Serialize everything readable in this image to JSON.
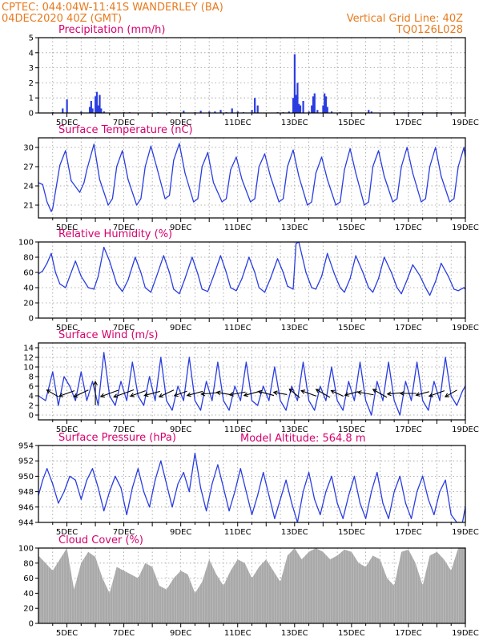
{
  "header": {
    "source_line": "CPTEC:   044:04W-11:41S   WANDERLEY (BA)",
    "run_line": "04DEC2020 40Z (GMT)",
    "grid_note": "Vertical Grid Line: 40Z",
    "code": "TQ0126L028"
  },
  "model_altitude_label": "Model Altitude: 564.8 m",
  "colors": {
    "header": "#e87a1e",
    "title": "#d6006e",
    "series": "#2a3de0",
    "cloud": "#a9a9a9",
    "wind_arrow": "#000000"
  },
  "chart_data": [
    {
      "type": "bar",
      "title": "Precipitation (mm/h)",
      "x_days": [
        4.5,
        4.85,
        5.0,
        5.5,
        5.8,
        5.85,
        5.9,
        6.0,
        6.05,
        6.1,
        6.15,
        6.2,
        6.3,
        7.0,
        7.2,
        8.2,
        8.6,
        9.1,
        9.5,
        9.7,
        10.0,
        10.2,
        10.4,
        10.6,
        10.8,
        11.0,
        11.2,
        11.5,
        11.6,
        11.7,
        12.4,
        12.6,
        12.8,
        12.95,
        13.0,
        13.05,
        13.1,
        13.15,
        13.2,
        13.3,
        13.5,
        13.6,
        13.65,
        13.7,
        13.8,
        14.0,
        14.05,
        14.1,
        14.15,
        14.3,
        14.6,
        15.0,
        15.6,
        15.7,
        16.5,
        17.0,
        17.5,
        18.0,
        18.5,
        19.0
      ],
      "values": [
        0.05,
        0.3,
        0.9,
        0.1,
        0.4,
        0.8,
        0.3,
        1.1,
        1.4,
        0.5,
        1.2,
        0.3,
        0.1,
        0.05,
        0.05,
        0.05,
        0.05,
        0.15,
        0.05,
        0.15,
        0.1,
        0.1,
        0.2,
        0.05,
        0.3,
        0.1,
        0.05,
        0.2,
        1.0,
        0.5,
        0.05,
        0.05,
        0.1,
        1.0,
        3.9,
        1.2,
        2.0,
        0.6,
        0.5,
        0.8,
        0.1,
        0.5,
        1.1,
        1.3,
        0.2,
        0.5,
        1.3,
        1.1,
        0.4,
        0.1,
        0.05,
        0.05,
        0.2,
        0.1,
        0.05,
        0.05,
        0.05,
        0.05,
        0.05,
        0.05
      ],
      "x_range": [
        4.0,
        19.0
      ],
      "y_range": [
        0,
        5
      ],
      "y_ticks": [
        0,
        1,
        2,
        3,
        4,
        5
      ],
      "x_ticks": [
        5,
        7,
        9,
        11,
        13,
        15,
        17,
        19
      ],
      "x_tick_labels": [
        "5DEC",
        "7DEC",
        "9DEC",
        "11DEC",
        "13DEC",
        "15DEC",
        "17DEC",
        "19DEC"
      ],
      "grid": true
    },
    {
      "type": "line",
      "title": "Surface Temperature (nC)",
      "x_days": [
        4.0,
        4.15,
        4.3,
        4.45,
        4.5,
        4.75,
        4.95,
        5.15,
        5.45,
        5.6,
        5.7,
        5.95,
        6.15,
        6.45,
        6.6,
        6.75,
        6.95,
        7.15,
        7.45,
        7.6,
        7.75,
        7.95,
        8.15,
        8.45,
        8.6,
        8.75,
        8.95,
        9.15,
        9.45,
        9.6,
        9.75,
        9.95,
        10.15,
        10.45,
        10.6,
        10.75,
        10.95,
        11.15,
        11.45,
        11.6,
        11.75,
        11.95,
        12.15,
        12.45,
        12.6,
        12.75,
        12.95,
        13.15,
        13.45,
        13.6,
        13.75,
        13.95,
        14.15,
        14.45,
        14.6,
        14.75,
        14.95,
        15.15,
        15.45,
        15.6,
        15.75,
        15.95,
        16.15,
        16.45,
        16.6,
        16.75,
        16.95,
        17.15,
        17.45,
        17.6,
        17.75,
        17.95,
        18.15,
        18.45,
        18.6,
        18.75,
        18.95,
        19.0
      ],
      "values": [
        24.5,
        24.2,
        21.5,
        20.0,
        20.5,
        27.2,
        29.5,
        24.8,
        23.0,
        24.5,
        26.5,
        30.5,
        25.0,
        21.0,
        22.0,
        27.0,
        29.5,
        25.0,
        21.0,
        22.0,
        27.0,
        30.2,
        27.0,
        22.0,
        22.5,
        28.0,
        30.6,
        26.0,
        21.5,
        22.0,
        27.0,
        29.2,
        24.5,
        21.5,
        22.0,
        26.5,
        28.5,
        25.0,
        21.5,
        22.0,
        27.0,
        29.0,
        25.5,
        21.5,
        22.0,
        27.0,
        29.6,
        25.5,
        21.0,
        21.5,
        26.0,
        28.5,
        25.0,
        21.0,
        21.5,
        26.5,
        29.8,
        26.0,
        21.0,
        21.5,
        27.0,
        29.5,
        25.5,
        21.5,
        22.0,
        27.0,
        30.0,
        26.0,
        21.5,
        22.0,
        27.0,
        30.0,
        25.5,
        21.5,
        22.0,
        27.0,
        30.0,
        28.5
      ],
      "x_range": [
        4.0,
        19.0
      ],
      "y_range": [
        19,
        31.5
      ],
      "y_ticks": [
        21,
        24,
        27,
        30
      ],
      "x_ticks": [
        5,
        7,
        9,
        11,
        13,
        15,
        17,
        19
      ],
      "x_tick_labels": [
        "5DEC",
        "7DEC",
        "9DEC",
        "11DEC",
        "13DEC",
        "15DEC",
        "17DEC",
        "19DEC"
      ],
      "grid": true
    },
    {
      "type": "line",
      "title": "Relative Humidity (%)",
      "x_days": [
        4.0,
        4.15,
        4.3,
        4.45,
        4.6,
        4.75,
        4.95,
        5.1,
        5.3,
        5.5,
        5.75,
        5.95,
        6.1,
        6.3,
        6.5,
        6.75,
        6.95,
        7.15,
        7.4,
        7.6,
        7.75,
        7.95,
        8.15,
        8.4,
        8.6,
        8.75,
        8.95,
        9.15,
        9.4,
        9.6,
        9.75,
        9.95,
        10.15,
        10.4,
        10.6,
        10.75,
        10.95,
        11.15,
        11.4,
        11.6,
        11.75,
        11.95,
        12.15,
        12.4,
        12.6,
        12.75,
        12.95,
        13.05,
        13.15,
        13.4,
        13.6,
        13.75,
        13.95,
        14.15,
        14.4,
        14.6,
        14.75,
        14.95,
        15.15,
        15.4,
        15.6,
        15.75,
        15.95,
        16.15,
        16.4,
        16.6,
        16.75,
        16.95,
        17.15,
        17.4,
        17.6,
        17.75,
        17.95,
        18.15,
        18.4,
        18.6,
        18.75,
        18.95,
        19.0
      ],
      "values": [
        58,
        62,
        72,
        85,
        60,
        45,
        40,
        55,
        75,
        55,
        40,
        38,
        55,
        93,
        75,
        45,
        35,
        50,
        80,
        60,
        40,
        34,
        55,
        82,
        60,
        38,
        32,
        52,
        80,
        58,
        38,
        35,
        55,
        82,
        60,
        40,
        36,
        52,
        80,
        60,
        40,
        34,
        52,
        78,
        60,
        42,
        38,
        98,
        100,
        60,
        40,
        38,
        55,
        85,
        58,
        40,
        34,
        52,
        82,
        60,
        40,
        34,
        52,
        80,
        60,
        40,
        32,
        50,
        70,
        56,
        40,
        30,
        48,
        72,
        55,
        38,
        36,
        40,
        38
      ],
      "x_range": [
        4.0,
        19.0
      ],
      "y_range": [
        0,
        100
      ],
      "y_ticks": [
        0,
        20,
        40,
        60,
        80,
        100
      ],
      "x_ticks": [
        5,
        7,
        9,
        11,
        13,
        15,
        17,
        19
      ],
      "x_tick_labels": [
        "5DEC",
        "7DEC",
        "9DEC",
        "11DEC",
        "13DEC",
        "15DEC",
        "17DEC",
        "19DEC"
      ],
      "grid": true
    },
    {
      "type": "line",
      "title": "Surface Wind (m/s)",
      "x_days": [
        4.0,
        4.25,
        4.5,
        4.7,
        4.9,
        5.1,
        5.3,
        5.5,
        5.7,
        5.9,
        6.1,
        6.3,
        6.5,
        6.7,
        6.9,
        7.1,
        7.3,
        7.5,
        7.7,
        7.9,
        8.1,
        8.3,
        8.5,
        8.7,
        8.9,
        9.1,
        9.3,
        9.5,
        9.7,
        9.9,
        10.1,
        10.3,
        10.5,
        10.7,
        10.9,
        11.1,
        11.3,
        11.5,
        11.7,
        11.9,
        12.1,
        12.3,
        12.5,
        12.7,
        12.9,
        13.1,
        13.3,
        13.5,
        13.7,
        13.9,
        14.1,
        14.3,
        14.5,
        14.7,
        14.9,
        15.1,
        15.3,
        15.5,
        15.7,
        15.9,
        16.1,
        16.3,
        16.5,
        16.7,
        16.9,
        17.1,
        17.3,
        17.5,
        17.7,
        17.9,
        18.1,
        18.3,
        18.5,
        18.7,
        18.9,
        19.0
      ],
      "values": [
        4,
        3,
        9,
        2,
        8,
        6,
        3,
        9,
        3,
        7,
        2,
        13,
        4,
        2,
        7,
        3,
        11,
        4,
        2,
        8,
        3,
        12,
        3,
        1,
        6,
        3,
        12,
        3,
        1,
        7,
        3,
        11,
        3,
        1,
        6,
        3,
        11,
        3,
        2,
        6,
        3,
        10,
        3,
        1,
        6,
        3,
        11,
        3,
        1,
        6,
        3,
        10,
        3,
        1,
        7,
        3,
        11,
        3,
        0,
        7,
        3,
        11,
        3,
        0,
        7,
        3,
        11,
        3,
        1,
        7,
        3,
        12,
        4,
        2,
        5,
        6
      ],
      "arrows_x_days": [
        4.5,
        5.0,
        5.5,
        6.0,
        6.5,
        7.0,
        7.5,
        8.0,
        8.5,
        9.0,
        9.5,
        10.0,
        10.5,
        11.0,
        11.5,
        12.0,
        12.5,
        13.0,
        13.5,
        14.0,
        14.5,
        15.0,
        15.5,
        16.0,
        16.5,
        17.0,
        17.5,
        18.0,
        18.5
      ],
      "arrows_speed": [
        4,
        5,
        5,
        8,
        6,
        7,
        5,
        5,
        5,
        4,
        5,
        5,
        4,
        5,
        5,
        5,
        4,
        4,
        5,
        5,
        4,
        4,
        5,
        5,
        4,
        5,
        4,
        5,
        4
      ],
      "arrows_dir_deg": [
        150,
        200,
        205,
        90,
        200,
        200,
        200,
        195,
        205,
        200,
        195,
        185,
        170,
        190,
        195,
        165,
        170,
        140,
        160,
        150,
        155,
        195,
        170,
        150,
        185,
        180,
        195,
        200,
        210
      ],
      "x_range": [
        4.0,
        19.0
      ],
      "y_range": [
        -1,
        15
      ],
      "y_ticks": [
        0,
        2,
        4,
        6,
        8,
        10,
        12,
        14
      ],
      "x_ticks": [
        5,
        7,
        9,
        11,
        13,
        15,
        17,
        19
      ],
      "x_tick_labels": [
        "5DEC",
        "7DEC",
        "9DEC",
        "11DEC",
        "13DEC",
        "15DEC",
        "17DEC",
        "19DEC"
      ],
      "grid": true
    },
    {
      "type": "line",
      "title": "Surface Pressure (hPa)",
      "x_days": [
        4.0,
        4.15,
        4.3,
        4.5,
        4.7,
        4.9,
        5.1,
        5.3,
        5.5,
        5.7,
        5.9,
        6.1,
        6.3,
        6.5,
        6.7,
        6.9,
        7.1,
        7.3,
        7.5,
        7.7,
        7.9,
        8.1,
        8.3,
        8.5,
        8.7,
        8.9,
        9.1,
        9.3,
        9.5,
        9.7,
        9.9,
        10.1,
        10.3,
        10.5,
        10.7,
        10.9,
        11.1,
        11.3,
        11.5,
        11.7,
        11.9,
        12.1,
        12.3,
        12.5,
        12.7,
        12.9,
        13.1,
        13.3,
        13.5,
        13.7,
        13.9,
        14.1,
        14.3,
        14.5,
        14.7,
        14.9,
        15.1,
        15.3,
        15.5,
        15.7,
        15.9,
        16.1,
        16.3,
        16.5,
        16.7,
        16.9,
        17.1,
        17.3,
        17.5,
        17.7,
        17.9,
        18.1,
        18.3,
        18.5,
        18.7,
        18.9,
        19.0
      ],
      "values": [
        947.5,
        949.5,
        951.0,
        949.0,
        946.5,
        948.0,
        950.0,
        949.5,
        947.0,
        949.5,
        951.0,
        948.5,
        945.5,
        948.0,
        950.0,
        948.5,
        945.0,
        948.5,
        951.0,
        948.0,
        946.0,
        949.5,
        952.0,
        949.0,
        946.0,
        949.0,
        950.5,
        948.0,
        953.0,
        948.5,
        945.5,
        949.0,
        951.5,
        948.5,
        945.5,
        948.0,
        951.0,
        948.0,
        945.0,
        947.5,
        950.5,
        947.5,
        944.5,
        947.0,
        949.5,
        946.5,
        944.0,
        948.0,
        950.5,
        947.0,
        945.0,
        948.0,
        950.0,
        946.5,
        944.5,
        947.5,
        950.0,
        946.5,
        944.5,
        948.0,
        950.5,
        946.5,
        944.5,
        948.0,
        950.0,
        946.5,
        944.5,
        948.0,
        950.0,
        947.0,
        945.0,
        948.0,
        949.5,
        945.0,
        944.0,
        944.0,
        946.0
      ],
      "x_range": [
        4.0,
        19.0
      ],
      "y_range": [
        944,
        954
      ],
      "y_ticks": [
        944,
        946,
        948,
        950,
        952,
        954
      ],
      "x_ticks": [
        5,
        7,
        9,
        11,
        13,
        15,
        17,
        19
      ],
      "x_tick_labels": [
        "5DEC",
        "7DEC",
        "9DEC",
        "11DEC",
        "13DEC",
        "15DEC",
        "17DEC",
        "19DEC"
      ],
      "grid": true
    },
    {
      "type": "area",
      "title": "Cloud Cover (%)",
      "x_days": [
        4.0,
        4.25,
        4.5,
        4.75,
        5.0,
        5.25,
        5.5,
        5.75,
        6.0,
        6.25,
        6.5,
        6.75,
        7.0,
        7.25,
        7.5,
        7.75,
        8.0,
        8.25,
        8.5,
        8.75,
        9.0,
        9.25,
        9.5,
        9.75,
        10.0,
        10.25,
        10.5,
        10.75,
        11.0,
        11.25,
        11.5,
        11.75,
        12.0,
        12.25,
        12.5,
        12.75,
        13.0,
        13.25,
        13.5,
        13.75,
        14.0,
        14.25,
        14.5,
        14.75,
        15.0,
        15.25,
        15.5,
        15.75,
        16.0,
        16.25,
        16.5,
        16.75,
        17.0,
        17.25,
        17.5,
        17.75,
        18.0,
        18.25,
        18.5,
        18.75,
        19.0
      ],
      "values": [
        90,
        80,
        70,
        85,
        100,
        45,
        80,
        95,
        88,
        60,
        40,
        75,
        70,
        65,
        60,
        80,
        75,
        50,
        45,
        60,
        70,
        65,
        40,
        55,
        85,
        65,
        50,
        70,
        85,
        80,
        60,
        75,
        85,
        70,
        55,
        90,
        100,
        85,
        95,
        100,
        95,
        85,
        90,
        98,
        95,
        80,
        75,
        90,
        85,
        60,
        50,
        95,
        98,
        80,
        50,
        90,
        95,
        85,
        70,
        100,
        100
      ],
      "x_range": [
        4.0,
        19.0
      ],
      "y_range": [
        0,
        100
      ],
      "y_ticks": [
        0,
        20,
        40,
        60,
        80,
        100
      ],
      "x_ticks": [
        5,
        7,
        9,
        11,
        13,
        15,
        17,
        19
      ],
      "x_tick_labels": [
        "5DEC",
        "7DEC",
        "9DEC",
        "11DEC",
        "13DEC",
        "15DEC",
        "17DEC",
        "19DEC"
      ],
      "grid": true
    }
  ]
}
